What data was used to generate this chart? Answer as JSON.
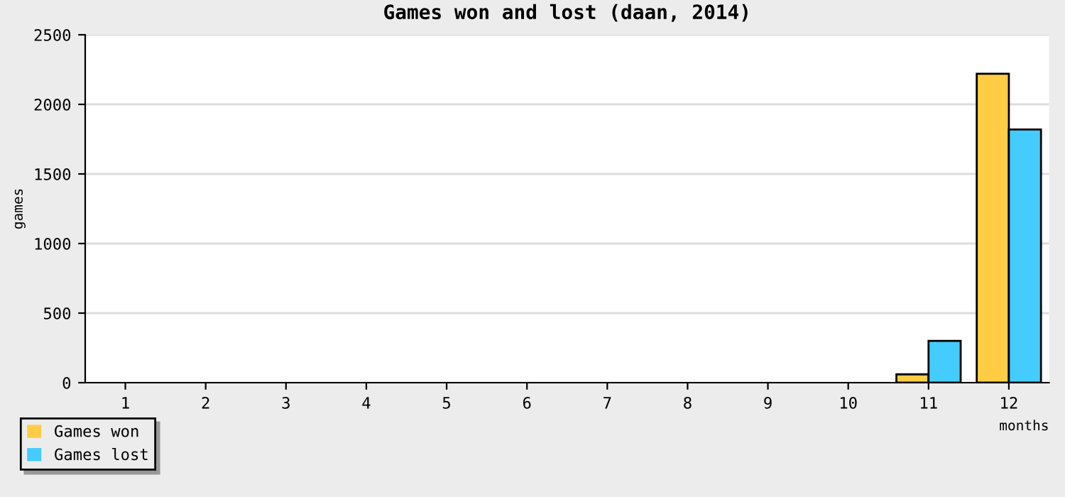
{
  "chart_data": {
    "type": "bar",
    "title": "Games won and lost (daan, 2014)",
    "xlabel": "months",
    "ylabel": "games",
    "categories": [
      "1",
      "2",
      "3",
      "4",
      "5",
      "6",
      "7",
      "8",
      "9",
      "10",
      "11",
      "12"
    ],
    "series": [
      {
        "name": "Games won",
        "color": "#ffcc44",
        "values": [
          0,
          0,
          0,
          0,
          0,
          0,
          0,
          0,
          0,
          0,
          60,
          2220
        ]
      },
      {
        "name": "Games lost",
        "color": "#44ccff",
        "values": [
          0,
          0,
          0,
          0,
          0,
          0,
          0,
          0,
          0,
          0,
          300,
          1820
        ]
      }
    ],
    "ylim": [
      0,
      2500
    ],
    "yticks": [
      0,
      500,
      1000,
      1500,
      2000,
      2500
    ],
    "grid": "y",
    "legend": "bottom left"
  }
}
